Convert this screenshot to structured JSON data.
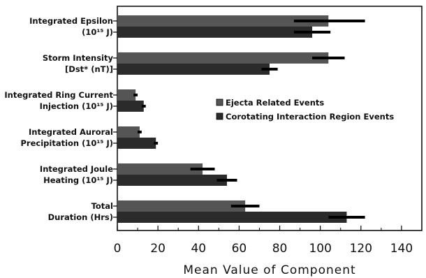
{
  "chart_data": {
    "type": "bar",
    "orientation": "horizontal",
    "categories": [
      {
        "line1": "Integrated Epsilon",
        "line2": "(10¹⁵ J)"
      },
      {
        "line1": "Storm Intensity",
        "line2": "[Dst* (nT)]"
      },
      {
        "line1": "Integrated Ring Current",
        "line2": "Injection (10¹⁵ J)"
      },
      {
        "line1": "Integrated Auroral",
        "line2": "Precipitation (10¹⁵ J)"
      },
      {
        "line1": "Integrated Joule",
        "line2": "Heating (10¹⁵ J)"
      },
      {
        "line1": "Total",
        "line2": "Duration (Hrs)"
      }
    ],
    "series": [
      {
        "name": "Ejecta Related Events",
        "color": "#555555",
        "values": [
          104,
          104,
          9,
          11,
          42,
          63
        ],
        "errors": [
          [
            87,
            122
          ],
          [
            96,
            112
          ],
          [
            8,
            10
          ],
          [
            10,
            12
          ],
          [
            36,
            48
          ],
          [
            56,
            70
          ]
        ]
      },
      {
        "name": "Corotating Interaction Region Events",
        "color": "#2b2b2b",
        "values": [
          96,
          75,
          13,
          19,
          54,
          113
        ],
        "errors": [
          [
            87,
            105
          ],
          [
            71,
            79
          ],
          [
            12,
            14
          ],
          [
            18,
            20
          ],
          [
            49,
            59
          ],
          [
            104,
            122
          ]
        ]
      }
    ],
    "xlabel": "Mean Value of Component",
    "xlim": [
      0,
      150
    ],
    "xticks": [
      0,
      20,
      40,
      60,
      80,
      100,
      120,
      140
    ],
    "grid": false,
    "legend_position": "center-right"
  }
}
